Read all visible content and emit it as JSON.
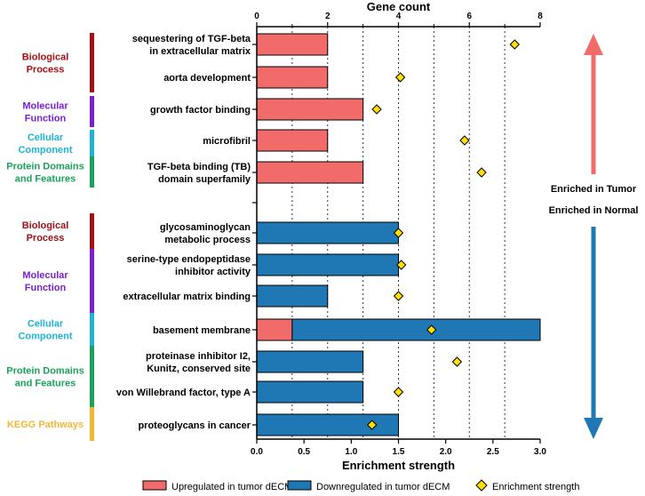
{
  "chart_data": {
    "type": "bar",
    "title_top_axis": "Gene count",
    "xlabel_bottom": "Enrichment strength",
    "top_axis": {
      "min": 0,
      "max": 8,
      "ticks": [
        0,
        2,
        4,
        6,
        8
      ],
      "tick_labels": [
        "0",
        "2",
        "4",
        "6",
        "8"
      ]
    },
    "bottom_axis": {
      "min": 0,
      "max": 3.0,
      "ticks": [
        0,
        0.5,
        1.0,
        1.5,
        2.0,
        2.5,
        3.0
      ],
      "tick_labels": [
        "0.0",
        "0.5",
        "1.0",
        "1.5",
        "2.0",
        "2.5",
        "3.0"
      ]
    },
    "gridlines": "dotted vertical at top-axis ticks and half-steps",
    "colors": {
      "up": "#f26b6b",
      "down": "#1f77b4",
      "diamond": "#ffe000",
      "arrow_up": "#f26b6b",
      "arrow_down": "#1f77b4"
    },
    "categories": [
      {
        "group": "Biological Process",
        "group_color": "#a50f15"
      },
      {
        "group": "Molecular Function",
        "group_color": "#7b1fd6"
      },
      {
        "group": "Cellular Component",
        "group_color": "#1fb3d6"
      },
      {
        "group": "Protein Domains and Features",
        "group_color": "#1aa15a"
      },
      {
        "group": "KEGG Pathways",
        "group_color": "#f5b731"
      }
    ],
    "tumor_section": [
      {
        "label_lines": [
          "sequestering of TGF-beta",
          "in extracellular matrix"
        ],
        "group": "Biological Process",
        "up": 2,
        "down": 0,
        "strength": 2.73
      },
      {
        "label_lines": [
          "aorta development"
        ],
        "group": "Biological Process",
        "up": 2,
        "down": 0,
        "strength": 1.52
      },
      {
        "label_lines": [
          "growth factor binding"
        ],
        "group": "Molecular Function",
        "up": 3,
        "down": 0,
        "strength": 1.27
      },
      {
        "label_lines": [
          "microfibril"
        ],
        "group": "Cellular Component",
        "up": 2,
        "down": 0,
        "strength": 2.2
      },
      {
        "label_lines": [
          "TGF-beta binding (TB)",
          "domain superfamily"
        ],
        "group": "Protein Domains and Features",
        "up": 3,
        "down": 0,
        "strength": 2.38
      }
    ],
    "normal_section": [
      {
        "label_lines": [
          "glycosaminoglycan",
          "metabolic process"
        ],
        "group": "Biological Process",
        "up": 0,
        "down": 4,
        "strength": 1.5
      },
      {
        "label_lines": [
          "serine-type endopeptidase",
          "inhibitor activity"
        ],
        "group": "Molecular Function",
        "up": 0,
        "down": 4,
        "strength": 1.53
      },
      {
        "label_lines": [
          "extracellular matrix binding"
        ],
        "group": "Molecular Function",
        "up": 0,
        "down": 2,
        "strength": 1.5
      },
      {
        "label_lines": [
          "basement membrane"
        ],
        "group": "Cellular Component",
        "up": 1,
        "down": 7,
        "strength": 1.85
      },
      {
        "label_lines": [
          "proteinase inhibitor I2,",
          "Kunitz, conserved site"
        ],
        "group": "Protein Domains and Features",
        "up": 0,
        "down": 3,
        "strength": 2.12
      },
      {
        "label_lines": [
          "von Willebrand factor, type A"
        ],
        "group": "Protein Domains and Features",
        "up": 0,
        "down": 3,
        "strength": 1.5
      },
      {
        "label_lines": [
          "proteoglycans in cancer"
        ],
        "group": "KEGG Pathways",
        "up": 0,
        "down": 4,
        "strength": 1.22
      }
    ],
    "left_groups_tumor": [
      {
        "lines": [
          "Biological",
          "Process"
        ],
        "color": "#a50f15"
      },
      {
        "lines": [
          "Molecular",
          "Function"
        ],
        "color": "#7b1fd6"
      },
      {
        "lines": [
          "Cellular",
          "Component"
        ],
        "color": "#1fb3d6"
      },
      {
        "lines": [
          "Protein Domains",
          "and Features"
        ],
        "color": "#1aa15a"
      }
    ],
    "left_groups_normal": [
      {
        "lines": [
          "Biological",
          "Process"
        ],
        "color": "#a50f15"
      },
      {
        "lines": [
          "Molecular",
          "Function"
        ],
        "color": "#7b1fd6"
      },
      {
        "lines": [
          "Cellular",
          "Component"
        ],
        "color": "#1fb3d6"
      },
      {
        "lines": [
          "Protein Domains",
          "and Features"
        ],
        "color": "#1aa15a"
      },
      {
        "lines": [
          "KEGG Pathways"
        ],
        "color": "#f5b731"
      }
    ],
    "side_labels": {
      "tumor": "Enriched in Tumor",
      "normal": "Enriched in Normal"
    },
    "legend": [
      {
        "name": "Upregulated in tumor dECM",
        "kind": "box",
        "color": "#f26b6b"
      },
      {
        "name": "Downregulated in tumor dECM",
        "kind": "box",
        "color": "#1f77b4"
      },
      {
        "name": "Enrichment strength",
        "kind": "diamond",
        "color": "#ffe000"
      }
    ]
  }
}
